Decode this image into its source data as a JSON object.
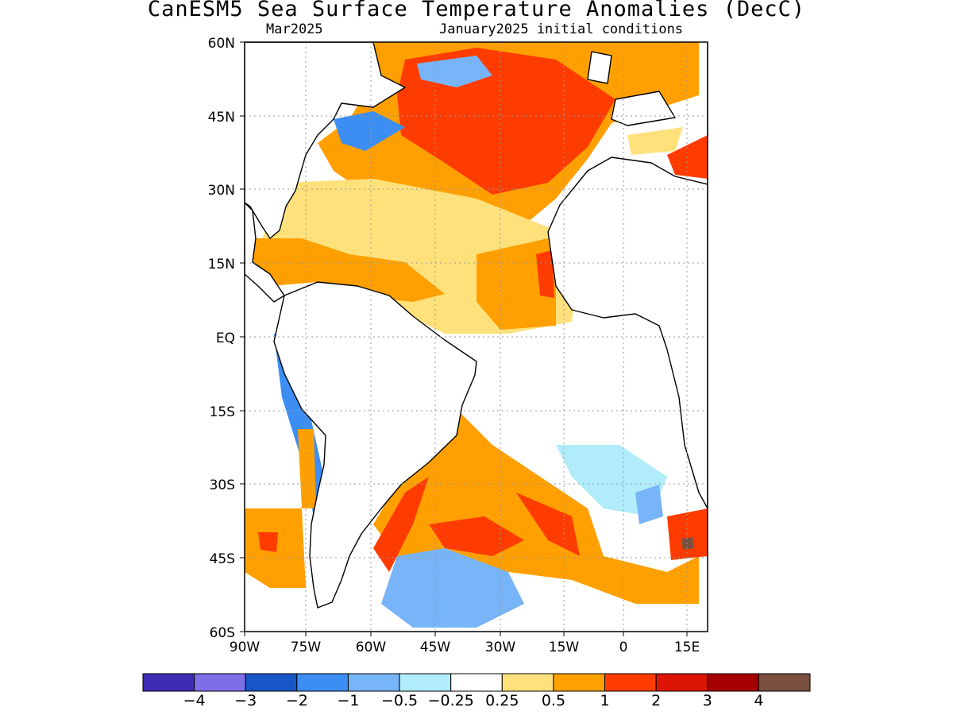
{
  "title": "CanESM5 Sea Surface Temperature Anomalies (DecC)",
  "subtitle_left": "Mar2025",
  "subtitle_right": "January2025 initial conditions",
  "lat_ticks": [
    "60N",
    "45N",
    "30N",
    "15N",
    "EQ",
    "15S",
    "30S",
    "45S",
    "60S"
  ],
  "lon_ticks": [
    "90W",
    "75W",
    "60W",
    "45W",
    "30W",
    "15W",
    "0",
    "15E"
  ],
  "colorbar": {
    "colors": [
      "#3d2db4",
      "#7f6fe6",
      "#1856c8",
      "#3c8ef2",
      "#78b4f8",
      "#b0ecfa",
      "#ffffff",
      "#ffe17c",
      "#ffa000",
      "#ff3c00",
      "#dd1505",
      "#a50000",
      "#7a5040"
    ],
    "labels": [
      "−4",
      "−3",
      "−2",
      "−1",
      "−0.5",
      "−0.25",
      "0.25",
      "0.5",
      "1",
      "2",
      "3",
      "4"
    ]
  },
  "colors": {
    "anom_pos_light": "#ffe17c",
    "anom_pos": "#ffa000",
    "anom_pos_strong": "#ff3c00",
    "anom_pos_vstrong": "#dd1505",
    "anom_neg_light": "#b0ecfa",
    "anom_neg": "#78b4f8",
    "anom_neg_strong": "#3c8ef2",
    "anom_neg_vstrong": "#1856c8",
    "land": "#ffffff",
    "coast": "#000000"
  }
}
